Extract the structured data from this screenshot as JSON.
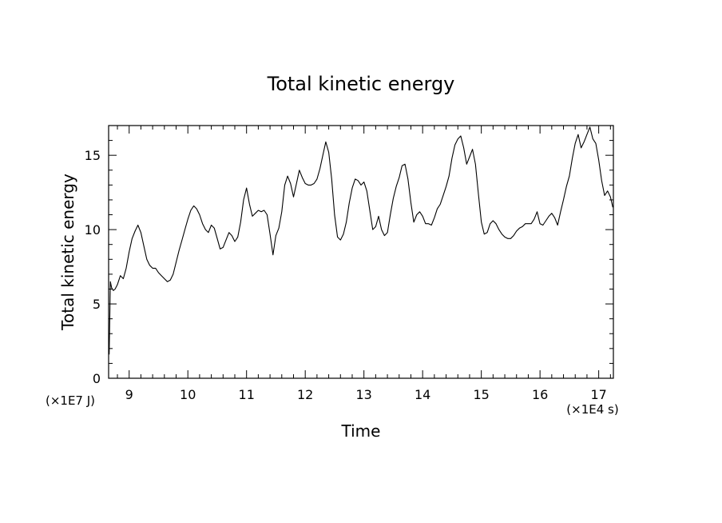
{
  "chart_data": {
    "type": "line",
    "title": "Total kinetic energy",
    "xlabel": "Time",
    "ylabel": "Total kinetic energy",
    "x_unit_label": "(×1E4 s)",
    "y_unit_label": "(×1E7 J)",
    "xlim": [
      8.65,
      17.25
    ],
    "ylim": [
      0,
      17
    ],
    "x_ticks": [
      9,
      10,
      11,
      12,
      13,
      14,
      15,
      16,
      17
    ],
    "y_ticks": [
      0,
      5,
      10,
      15
    ],
    "grid": false,
    "legend": "none",
    "line_color": "#000000",
    "series": [
      {
        "x": [
          8.66,
          8.68,
          8.7,
          8.73,
          8.76,
          8.8,
          8.85,
          8.9,
          8.95,
          9.0,
          9.05,
          9.1,
          9.15,
          9.2,
          9.25,
          9.3,
          9.35,
          9.4,
          9.45,
          9.5,
          9.55,
          9.6,
          9.65,
          9.7,
          9.75,
          9.8,
          9.85,
          9.9,
          9.95,
          10.0,
          10.05,
          10.1,
          10.15,
          10.2,
          10.25,
          10.3,
          10.35,
          10.4,
          10.45,
          10.5,
          10.55,
          10.6,
          10.65,
          10.7,
          10.75,
          10.8,
          10.85,
          10.9,
          10.95,
          11.0,
          11.05,
          11.1,
          11.15,
          11.2,
          11.25,
          11.3,
          11.35,
          11.4,
          11.45,
          11.5,
          11.55,
          11.6,
          11.65,
          11.7,
          11.75,
          11.8,
          11.85,
          11.9,
          11.95,
          12.0,
          12.05,
          12.1,
          12.15,
          12.2,
          12.25,
          12.3,
          12.35,
          12.4,
          12.45,
          12.5,
          12.55,
          12.6,
          12.65,
          12.7,
          12.75,
          12.8,
          12.85,
          12.9,
          12.95,
          13.0,
          13.05,
          13.1,
          13.15,
          13.2,
          13.25,
          13.3,
          13.35,
          13.4,
          13.45,
          13.5,
          13.55,
          13.6,
          13.65,
          13.7,
          13.75,
          13.8,
          13.85,
          13.9,
          13.95,
          14.0,
          14.05,
          14.1,
          14.15,
          14.2,
          14.25,
          14.3,
          14.35,
          14.4,
          14.45,
          14.5,
          14.55,
          14.6,
          14.65,
          14.7,
          14.75,
          14.8,
          14.85,
          14.9,
          14.95,
          15.0,
          15.05,
          15.1,
          15.15,
          15.2,
          15.25,
          15.3,
          15.35,
          15.4,
          15.45,
          15.5,
          15.55,
          15.6,
          15.65,
          15.7,
          15.75,
          15.8,
          15.85,
          15.9,
          15.95,
          16.0,
          16.05,
          16.1,
          16.15,
          16.2,
          16.25,
          16.3,
          16.35,
          16.4,
          16.45,
          16.5,
          16.55,
          16.6,
          16.65,
          16.7,
          16.75,
          16.8,
          16.85,
          16.9,
          16.95,
          17.0,
          17.05,
          17.1,
          17.15,
          17.2,
          17.24
        ],
        "y": [
          1.6,
          6.5,
          6.1,
          5.9,
          6.0,
          6.3,
          6.9,
          6.7,
          7.4,
          8.5,
          9.4,
          9.9,
          10.3,
          9.8,
          8.9,
          8.0,
          7.6,
          7.4,
          7.4,
          7.1,
          6.9,
          6.7,
          6.5,
          6.6,
          7.0,
          7.8,
          8.6,
          9.3,
          10.0,
          10.7,
          11.3,
          11.6,
          11.4,
          11.0,
          10.4,
          10.0,
          9.8,
          10.3,
          10.1,
          9.4,
          8.7,
          8.8,
          9.3,
          9.8,
          9.6,
          9.2,
          9.5,
          10.5,
          12.0,
          12.8,
          11.7,
          10.9,
          11.1,
          11.3,
          11.2,
          11.3,
          11.0,
          9.7,
          8.3,
          9.6,
          10.1,
          11.2,
          13.0,
          13.6,
          13.1,
          12.2,
          13.1,
          14.0,
          13.5,
          13.1,
          13.0,
          13.0,
          13.1,
          13.4,
          14.1,
          15.0,
          15.9,
          15.2,
          13.4,
          11.0,
          9.5,
          9.3,
          9.7,
          10.5,
          11.8,
          12.8,
          13.4,
          13.3,
          13.0,
          13.2,
          12.6,
          11.3,
          10.0,
          10.2,
          10.9,
          10.0,
          9.6,
          9.8,
          11.0,
          12.1,
          12.9,
          13.5,
          14.3,
          14.4,
          13.4,
          11.8,
          10.5,
          11.0,
          11.2,
          10.9,
          10.4,
          10.4,
          10.3,
          10.8,
          11.4,
          11.7,
          12.3,
          12.9,
          13.6,
          14.8,
          15.7,
          16.1,
          16.3,
          15.5,
          14.4,
          14.9,
          15.4,
          14.4,
          12.4,
          10.5,
          9.7,
          9.8,
          10.4,
          10.6,
          10.4,
          10.0,
          9.7,
          9.5,
          9.4,
          9.4,
          9.6,
          9.9,
          10.1,
          10.2,
          10.4,
          10.4,
          10.4,
          10.7,
          11.2,
          10.4,
          10.3,
          10.6,
          10.9,
          11.1,
          10.8,
          10.3,
          11.2,
          12.0,
          12.9,
          13.6,
          14.8,
          15.8,
          16.4,
          15.5,
          15.9,
          16.4,
          16.9,
          16.1,
          15.8,
          14.7,
          13.3,
          12.3,
          12.6,
          12.2,
          11.5
        ]
      }
    ]
  }
}
